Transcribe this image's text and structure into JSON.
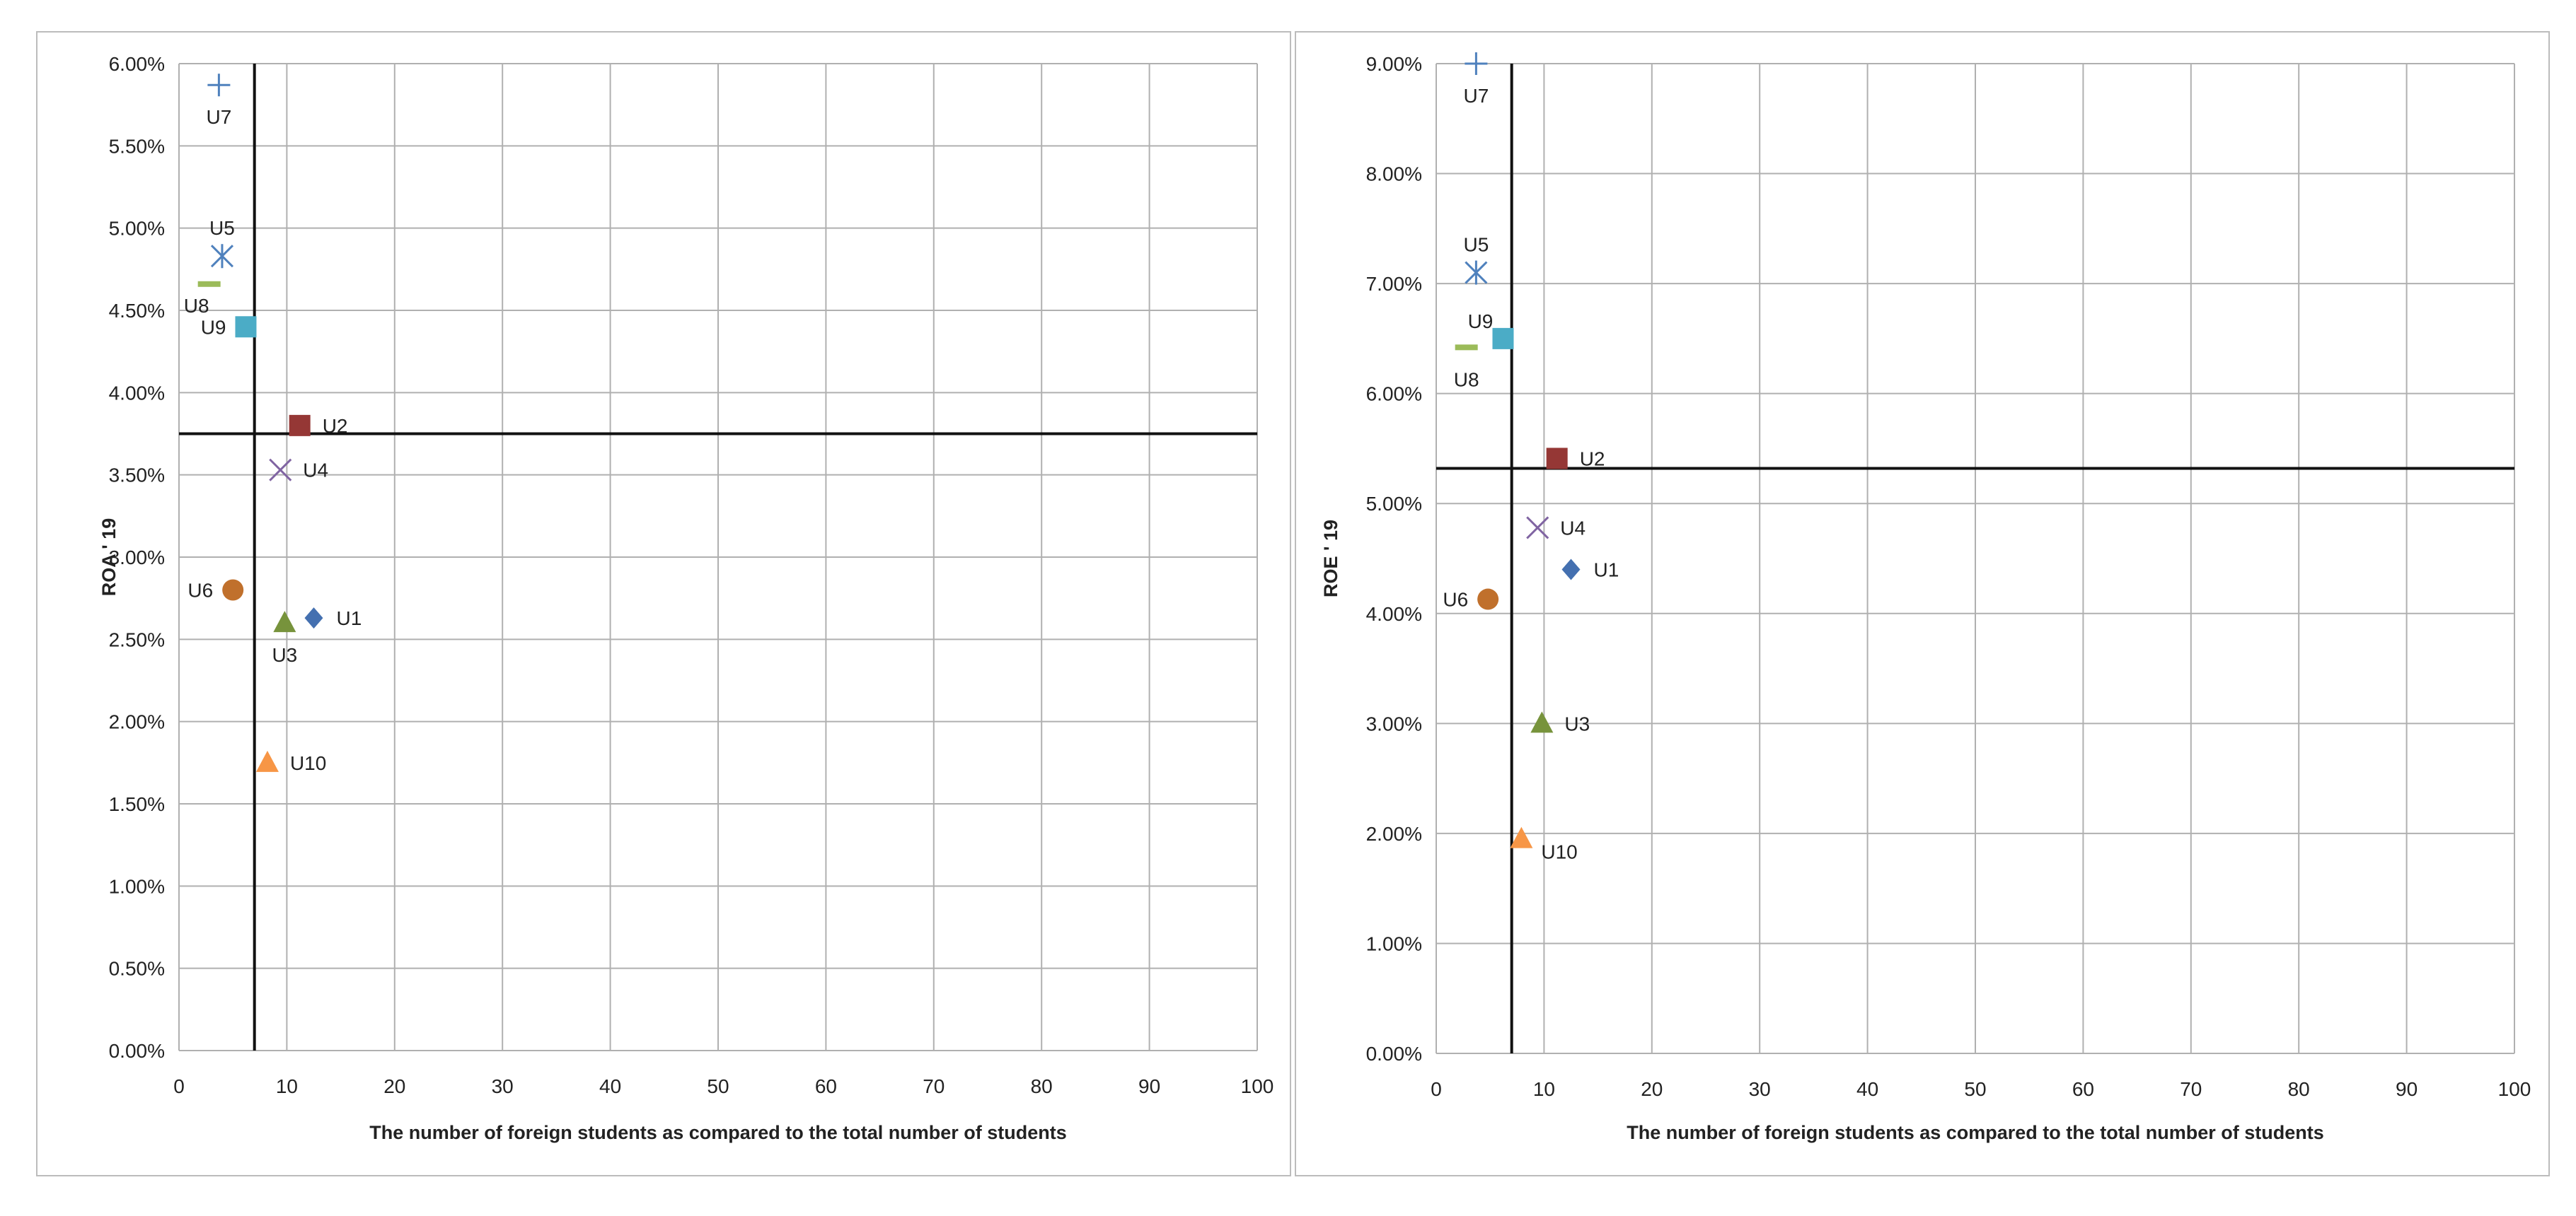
{
  "chart_data": [
    {
      "type": "scatter",
      "title": "",
      "xlabel": "The number of  foreign students as compared to the total number of students",
      "ylabel": "ROA ' 19",
      "xlim": [
        0,
        100
      ],
      "ylim": [
        0,
        6
      ],
      "x_ticks": [
        "0",
        "10",
        "20",
        "30",
        "40",
        "50",
        "60",
        "70",
        "80",
        "90",
        "100"
      ],
      "y_ticks": [
        "0.00%",
        "0.50%",
        "1.00%",
        "1.50%",
        "2.00%",
        "2.50%",
        "3.00%",
        "3.50%",
        "4.00%",
        "4.50%",
        "5.00%",
        "5.50%",
        "6.00%"
      ],
      "grid": true,
      "reference_lines": {
        "x": 7,
        "y": 3.75
      },
      "points": [
        {
          "label": "U7",
          "x": 3.7,
          "y": 5.87,
          "marker": "plus",
          "color": "#4f81bd",
          "label_pos": "below"
        },
        {
          "label": "U5",
          "x": 4.0,
          "y": 4.83,
          "marker": "star",
          "color": "#4f81bd",
          "label_pos": "above"
        },
        {
          "label": "U8",
          "x": 2.8,
          "y": 4.66,
          "marker": "dash",
          "color": "#9bbb59",
          "label_pos": "below-left"
        },
        {
          "label": "U9",
          "x": 6.2,
          "y": 4.4,
          "marker": "square",
          "color": "#4bacc6",
          "label_pos": "left"
        },
        {
          "label": "U2",
          "x": 11.2,
          "y": 3.8,
          "marker": "square",
          "color": "#953735",
          "label_pos": "right"
        },
        {
          "label": "U4",
          "x": 9.4,
          "y": 3.53,
          "marker": "x",
          "color": "#8064a2",
          "label_pos": "right"
        },
        {
          "label": "U6",
          "x": 5.0,
          "y": 2.8,
          "marker": "circle",
          "color": "#c0702c",
          "label_pos": "left"
        },
        {
          "label": "U1",
          "x": 12.5,
          "y": 2.63,
          "marker": "diamond",
          "color": "#4470b0",
          "label_pos": "right"
        },
        {
          "label": "U3",
          "x": 9.8,
          "y": 2.6,
          "marker": "triangle",
          "color": "#77933c",
          "label_pos": "below"
        },
        {
          "label": "U10",
          "x": 8.2,
          "y": 1.75,
          "marker": "triangle",
          "color": "#f79646",
          "label_pos": "right"
        }
      ]
    },
    {
      "type": "scatter",
      "title": "",
      "xlabel": "The number of  foreign students as compared to the total number of students",
      "ylabel": "ROE ' 19",
      "xlim": [
        0,
        100
      ],
      "ylim": [
        0,
        9
      ],
      "x_ticks": [
        "0",
        "10",
        "20",
        "30",
        "40",
        "50",
        "60",
        "70",
        "80",
        "90",
        "100"
      ],
      "y_ticks": [
        "0.00%",
        "1.00%",
        "2.00%",
        "3.00%",
        "4.00%",
        "5.00%",
        "6.00%",
        "7.00%",
        "8.00%",
        "9.00%"
      ],
      "grid": true,
      "reference_lines": {
        "x": 7,
        "y": 5.32
      },
      "points": [
        {
          "label": "U7",
          "x": 3.7,
          "y": 9.0,
          "marker": "plus",
          "color": "#4f81bd",
          "label_pos": "below"
        },
        {
          "label": "U5",
          "x": 3.7,
          "y": 7.1,
          "marker": "star",
          "color": "#4f81bd",
          "label_pos": "above"
        },
        {
          "label": "U9",
          "x": 6.2,
          "y": 6.5,
          "marker": "square",
          "color": "#4bacc6",
          "label_pos": "above-left"
        },
        {
          "label": "U8",
          "x": 2.8,
          "y": 6.42,
          "marker": "dash",
          "color": "#9bbb59",
          "label_pos": "below"
        },
        {
          "label": "U2",
          "x": 11.2,
          "y": 5.41,
          "marker": "square",
          "color": "#953735",
          "label_pos": "right"
        },
        {
          "label": "U4",
          "x": 9.4,
          "y": 4.78,
          "marker": "x",
          "color": "#8064a2",
          "label_pos": "right"
        },
        {
          "label": "U1",
          "x": 12.5,
          "y": 4.4,
          "marker": "diamond",
          "color": "#4470b0",
          "label_pos": "right"
        },
        {
          "label": "U6",
          "x": 4.8,
          "y": 4.13,
          "marker": "circle",
          "color": "#c0702c",
          "label_pos": "left"
        },
        {
          "label": "U3",
          "x": 9.8,
          "y": 3.0,
          "marker": "triangle",
          "color": "#77933c",
          "label_pos": "right"
        },
        {
          "label": "U10",
          "x": 7.9,
          "y": 1.95,
          "marker": "triangle",
          "color": "#f79646",
          "label_pos": "below-right"
        }
      ]
    }
  ]
}
